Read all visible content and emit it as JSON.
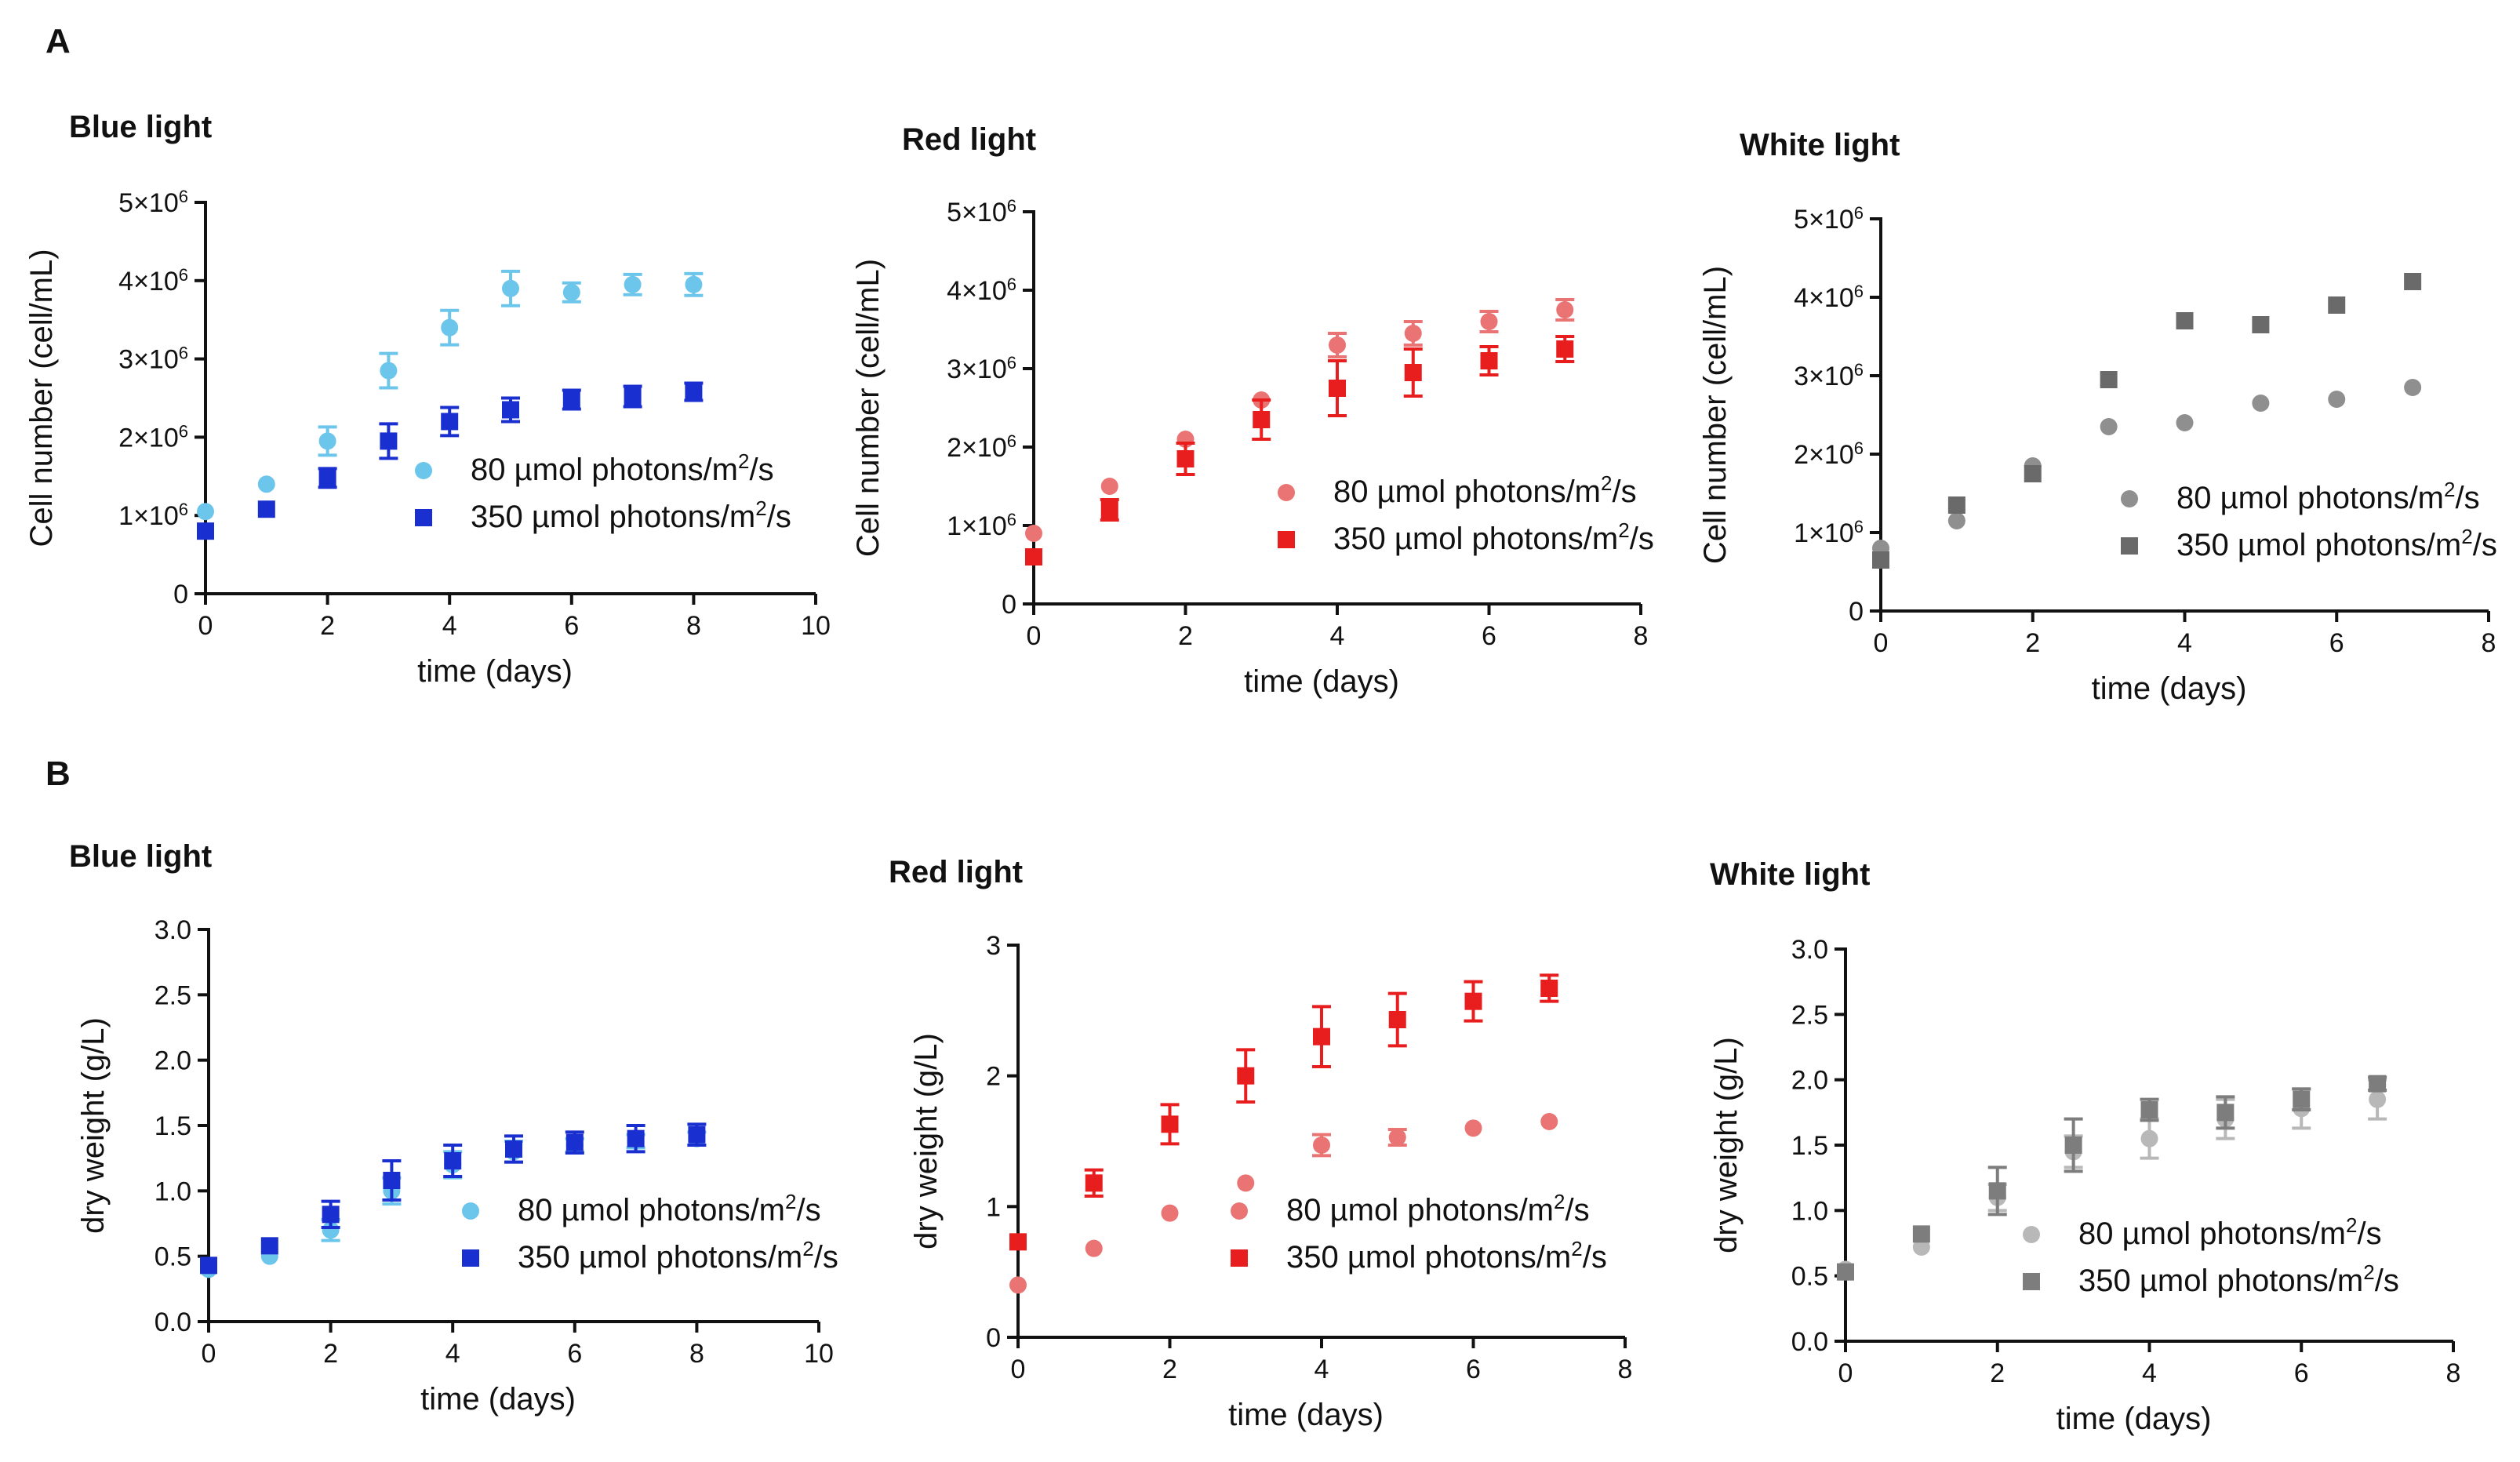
{
  "figure": {
    "panel_a": "A",
    "panel_b": "B"
  },
  "chart_data": [
    {
      "type": "scatter",
      "title": "Blue light",
      "xlabel": "time (days)",
      "ylabel": "Cell number (cell/mL)",
      "xlim": [
        0,
        10
      ],
      "ylim": [
        0,
        5000000
      ],
      "xticks": [
        "0",
        "2",
        "4",
        "6",
        "8",
        "10"
      ],
      "yticks": [
        {
          "label": "0",
          "exp": ""
        },
        {
          "label": "1×10",
          "exp": "6"
        },
        {
          "label": "2×10",
          "exp": "6"
        },
        {
          "label": "3×10",
          "exp": "6"
        },
        {
          "label": "4×10",
          "exp": "6"
        },
        {
          "label": "5×10",
          "exp": "6"
        }
      ],
      "legend_position": "lower-right",
      "series": [
        {
          "name": "80 µmol photons/m2/s",
          "prefix": "80 µmol photons/m",
          "sup": "2",
          "suffix": "/s",
          "marker": "circle",
          "color": "#6cc5ea",
          "x": [
            0,
            1,
            2,
            3,
            4,
            5,
            6,
            7,
            8
          ],
          "y": [
            1050000,
            1400000,
            1950000,
            2850000,
            3400000,
            3900000,
            3850000,
            3950000,
            3950000
          ],
          "err": [
            0,
            0,
            180000,
            220000,
            220000,
            220000,
            120000,
            130000,
            140000
          ]
        },
        {
          "name": "350 µmol photons/m2/s",
          "prefix": "350 µmol photons/m",
          "sup": "2",
          "suffix": "/s",
          "marker": "square",
          "color": "#1a2fd0",
          "x": [
            0,
            1,
            2,
            3,
            4,
            5,
            6,
            7,
            8
          ],
          "y": [
            800000,
            1080000,
            1480000,
            1950000,
            2200000,
            2350000,
            2480000,
            2520000,
            2580000
          ],
          "err": [
            0,
            0,
            120000,
            220000,
            180000,
            150000,
            120000,
            130000,
            110000
          ]
        }
      ]
    },
    {
      "type": "scatter",
      "title": "Red light",
      "xlabel": "time (days)",
      "ylabel": "Cell number (cell/mL)",
      "xlim": [
        0,
        8
      ],
      "ylim": [
        0,
        5000000
      ],
      "xticks": [
        "0",
        "2",
        "4",
        "6",
        "8"
      ],
      "yticks": [
        {
          "label": "0",
          "exp": ""
        },
        {
          "label": "1×10",
          "exp": "6"
        },
        {
          "label": "2×10",
          "exp": "6"
        },
        {
          "label": "3×10",
          "exp": "6"
        },
        {
          "label": "4×10",
          "exp": "6"
        },
        {
          "label": "5×10",
          "exp": "6"
        }
      ],
      "legend_position": "lower-right",
      "series": [
        {
          "name": "80 µmol photons/m2/s",
          "prefix": "80 µmol photons/m",
          "sup": "2",
          "suffix": "/s",
          "marker": "circle",
          "color": "#ea7373",
          "x": [
            0,
            1,
            2,
            3,
            4,
            5,
            6,
            7
          ],
          "y": [
            900000,
            1500000,
            2100000,
            2600000,
            3300000,
            3450000,
            3600000,
            3750000
          ],
          "err": [
            0,
            0,
            0,
            0,
            150000,
            150000,
            130000,
            130000
          ]
        },
        {
          "name": "350 µmol photons/m2/s",
          "prefix": "350 µmol photons/m",
          "sup": "2",
          "suffix": "/s",
          "marker": "square",
          "color": "#e81d1d",
          "x": [
            0,
            1,
            2,
            3,
            4,
            5,
            6,
            7
          ],
          "y": [
            600000,
            1200000,
            1850000,
            2350000,
            2750000,
            2950000,
            3100000,
            3250000
          ],
          "err": [
            0,
            130000,
            200000,
            250000,
            350000,
            300000,
            180000,
            160000
          ]
        }
      ]
    },
    {
      "type": "scatter",
      "title": "White light",
      "xlabel": "time (days)",
      "ylabel": "Cell number (cell/mL)",
      "xlim": [
        0,
        8
      ],
      "ylim": [
        0,
        5000000
      ],
      "xticks": [
        "0",
        "2",
        "4",
        "6",
        "8"
      ],
      "yticks": [
        {
          "label": "0",
          "exp": ""
        },
        {
          "label": "1×10",
          "exp": "6"
        },
        {
          "label": "2×10",
          "exp": "6"
        },
        {
          "label": "3×10",
          "exp": "6"
        },
        {
          "label": "4×10",
          "exp": "6"
        },
        {
          "label": "5×10",
          "exp": "6"
        }
      ],
      "legend_position": "lower-right",
      "series": [
        {
          "name": "80 µmol photons/m2/s",
          "prefix": "80 µmol photons/m",
          "sup": "2",
          "suffix": "/s",
          "marker": "circle",
          "color": "#8f8f8f",
          "x": [
            0,
            1,
            2,
            3,
            4,
            5,
            6,
            7
          ],
          "y": [
            800000,
            1150000,
            1850000,
            2350000,
            2400000,
            2650000,
            2700000,
            2850000
          ],
          "err": [
            0,
            0,
            0,
            0,
            0,
            0,
            0,
            0
          ]
        },
        {
          "name": "350 µmol photons/m2/s",
          "prefix": "350 µmol photons/m",
          "sup": "2",
          "suffix": "/s",
          "marker": "square",
          "color": "#6a6a6a",
          "x": [
            0,
            1,
            2,
            3,
            4,
            5,
            6,
            7
          ],
          "y": [
            650000,
            1350000,
            1750000,
            2950000,
            3700000,
            3650000,
            3900000,
            4200000
          ],
          "err": [
            0,
            0,
            0,
            0,
            0,
            0,
            0,
            0
          ]
        }
      ]
    },
    {
      "type": "scatter",
      "title": "Blue light",
      "xlabel": "time (days)",
      "ylabel": "dry weight (g/L)",
      "xlim": [
        0,
        10
      ],
      "ylim": [
        0,
        3
      ],
      "xticks": [
        "0",
        "2",
        "4",
        "6",
        "8",
        "10"
      ],
      "yticks": [
        {
          "label": "0.0",
          "exp": ""
        },
        {
          "label": "0.5",
          "exp": ""
        },
        {
          "label": "1.0",
          "exp": ""
        },
        {
          "label": "1.5",
          "exp": ""
        },
        {
          "label": "2.0",
          "exp": ""
        },
        {
          "label": "2.5",
          "exp": ""
        },
        {
          "label": "3.0",
          "exp": ""
        }
      ],
      "legend_position": "lower-right",
      "series": [
        {
          "name": "80 µmol photons/m2/s",
          "prefix": "80 µmol photons/m",
          "sup": "2",
          "suffix": "/s",
          "marker": "circle",
          "color": "#6cc5ea",
          "x": [
            0,
            1,
            2,
            3,
            4,
            5,
            6,
            7,
            8
          ],
          "y": [
            0.4,
            0.5,
            0.7,
            1.0,
            1.2,
            1.3,
            1.35,
            1.38,
            1.4
          ],
          "err": [
            0,
            0,
            0.08,
            0.1,
            0.1,
            0.08,
            0.05,
            0.05,
            0.05
          ]
        },
        {
          "name": "350 µmol photons/m2/s",
          "prefix": "350 µmol photons/m",
          "sup": "2",
          "suffix": "/s",
          "marker": "square",
          "color": "#1a2fd0",
          "x": [
            0,
            1,
            2,
            3,
            4,
            5,
            6,
            7,
            8
          ],
          "y": [
            0.43,
            0.58,
            0.82,
            1.08,
            1.23,
            1.32,
            1.37,
            1.4,
            1.43
          ],
          "err": [
            0,
            0,
            0.1,
            0.15,
            0.12,
            0.1,
            0.08,
            0.1,
            0.08
          ]
        }
      ]
    },
    {
      "type": "scatter",
      "title": "Red light",
      "xlabel": "time (days)",
      "ylabel": "dry weight (g/L)",
      "xlim": [
        0,
        8
      ],
      "ylim": [
        0,
        3
      ],
      "xticks": [
        "0",
        "2",
        "4",
        "6",
        "8"
      ],
      "yticks": [
        {
          "label": "0",
          "exp": ""
        },
        {
          "label": "1",
          "exp": ""
        },
        {
          "label": "2",
          "exp": ""
        },
        {
          "label": "3",
          "exp": ""
        }
      ],
      "legend_position": "lower-right",
      "series": [
        {
          "name": "80 µmol photons/m2/s",
          "prefix": "80 µmol photons/m",
          "sup": "2",
          "suffix": "/s",
          "marker": "circle",
          "color": "#ea7373",
          "x": [
            0,
            1,
            2,
            3,
            4,
            5,
            6,
            7
          ],
          "y": [
            0.4,
            0.68,
            0.95,
            1.18,
            1.47,
            1.53,
            1.6,
            1.65
          ],
          "err": [
            0,
            0,
            0,
            0,
            0.08,
            0.06,
            0,
            0
          ]
        },
        {
          "name": "350 µmol photons/m2/s",
          "prefix": "350 µmol photons/m",
          "sup": "2",
          "suffix": "/s",
          "marker": "square",
          "color": "#e81d1d",
          "x": [
            0,
            1,
            2,
            3,
            4,
            5,
            6,
            7
          ],
          "y": [
            0.73,
            1.18,
            1.63,
            2.0,
            2.3,
            2.43,
            2.57,
            2.67
          ],
          "err": [
            0,
            0.1,
            0.15,
            0.2,
            0.23,
            0.2,
            0.15,
            0.1
          ]
        }
      ]
    },
    {
      "type": "scatter",
      "title": "White light",
      "xlabel": "time (days)",
      "ylabel": "dry weight (g/L)",
      "xlim": [
        0,
        8
      ],
      "ylim": [
        0,
        3
      ],
      "xticks": [
        "0",
        "2",
        "4",
        "6",
        "8"
      ],
      "yticks": [
        {
          "label": "0.0",
          "exp": ""
        },
        {
          "label": "0.5",
          "exp": ""
        },
        {
          "label": "1.0",
          "exp": ""
        },
        {
          "label": "1.5",
          "exp": ""
        },
        {
          "label": "2.0",
          "exp": ""
        },
        {
          "label": "2.5",
          "exp": ""
        },
        {
          "label": "3.0",
          "exp": ""
        }
      ],
      "legend_position": "lower-right",
      "series": [
        {
          "name": "80 µmol photons/m2/s",
          "prefix": "80 µmol photons/m",
          "sup": "2",
          "suffix": "/s",
          "marker": "circle",
          "color": "#b8b8b8",
          "x": [
            0,
            1,
            2,
            3,
            4,
            5,
            6,
            7
          ],
          "y": [
            0.55,
            0.72,
            1.1,
            1.45,
            1.55,
            1.7,
            1.78,
            1.85
          ],
          "err": [
            0,
            0,
            0.1,
            0.12,
            0.15,
            0.15,
            0.15,
            0.15
          ]
        },
        {
          "name": "350 µmol photons/m2/s",
          "prefix": "350 µmol photons/m",
          "sup": "2",
          "suffix": "/s",
          "marker": "square",
          "color": "#7d7d7d",
          "x": [
            0,
            1,
            2,
            3,
            4,
            5,
            6,
            7
          ],
          "y": [
            0.53,
            0.82,
            1.15,
            1.5,
            1.77,
            1.75,
            1.85,
            1.97
          ],
          "err": [
            0,
            0,
            0.18,
            0.2,
            0.08,
            0.12,
            0.08,
            0.05
          ]
        }
      ]
    }
  ]
}
